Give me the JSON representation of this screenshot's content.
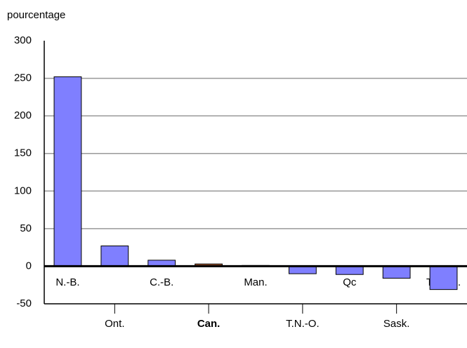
{
  "chart_data": {
    "type": "bar",
    "ylabel": "pourcentage",
    "categories": [
      "N.-B.",
      "Ont.",
      "C.-B.",
      "Can.",
      "Man.",
      "T.N.-O.",
      "Qc",
      "Sask.",
      "T.-N.-L."
    ],
    "values": [
      252,
      27,
      8,
      3,
      1,
      -10,
      -11,
      -16,
      -31
    ],
    "color": "#7f7fff",
    "highlight_color": "#a0522d",
    "highlight_index": 3,
    "ylim": [
      -50,
      300
    ],
    "yticks": [
      -50,
      0,
      50,
      100,
      150,
      200,
      250,
      300
    ],
    "grid": true
  }
}
